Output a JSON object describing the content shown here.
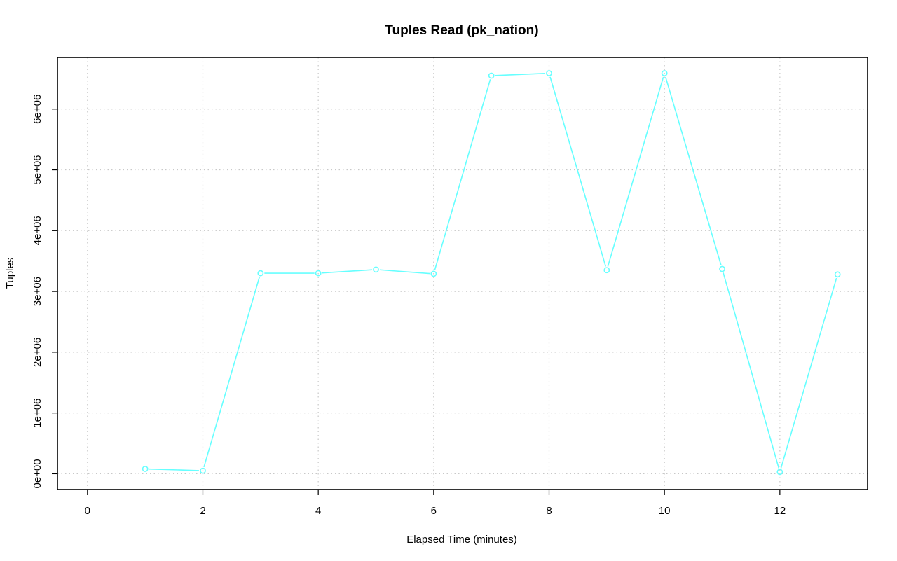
{
  "chart_data": {
    "type": "line",
    "title": "Tuples Read (pk_nation)",
    "xlabel": "Elapsed Time (minutes)",
    "ylabel": "Tuples",
    "xlim": [
      -0.52,
      13.52
    ],
    "ylim": [
      -260000,
      6850000
    ],
    "x_ticks": [
      {
        "value": 0,
        "label": "0"
      },
      {
        "value": 2,
        "label": "2"
      },
      {
        "value": 4,
        "label": "4"
      },
      {
        "value": 6,
        "label": "6"
      },
      {
        "value": 8,
        "label": "8"
      },
      {
        "value": 10,
        "label": "10"
      },
      {
        "value": 12,
        "label": "12"
      }
    ],
    "y_ticks": [
      {
        "value": 0,
        "label": "0e+00"
      },
      {
        "value": 1000000,
        "label": "1e+06"
      },
      {
        "value": 2000000,
        "label": "2e+06"
      },
      {
        "value": 3000000,
        "label": "3e+06"
      },
      {
        "value": 4000000,
        "label": "4e+06"
      },
      {
        "value": 5000000,
        "label": "5e+06"
      },
      {
        "value": 6000000,
        "label": "6e+06"
      }
    ],
    "grid": true,
    "grid_style": "dotted",
    "series": [
      {
        "color": "#66ffff",
        "marker": "open-circle",
        "x": [
          1,
          2,
          3,
          4,
          5,
          6,
          7,
          8,
          9,
          10,
          11,
          12,
          13
        ],
        "y": [
          80000,
          50000,
          3300000,
          3300000,
          3360000,
          3290000,
          6550000,
          6590000,
          3350000,
          6590000,
          3370000,
          30000,
          3280000
        ]
      }
    ]
  }
}
